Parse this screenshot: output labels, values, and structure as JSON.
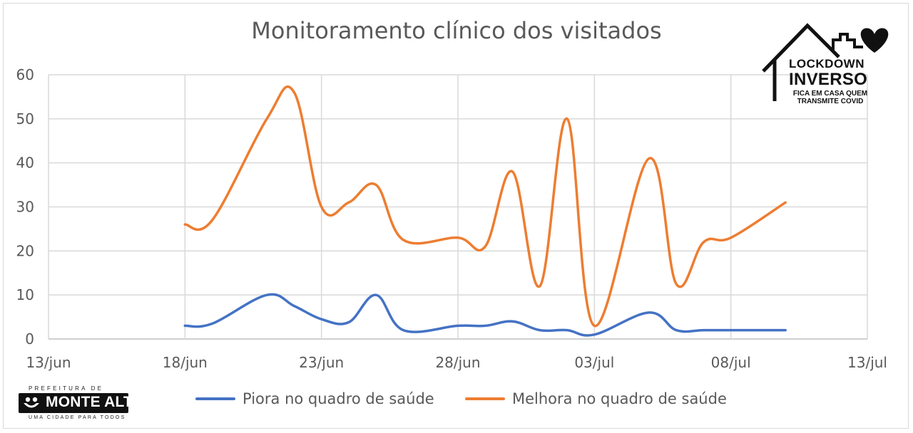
{
  "chart_data": {
    "type": "line",
    "title": "Monitoramento clínico dos visitados",
    "xlabel": "",
    "ylabel": "",
    "x_ticks": [
      "13/jun",
      "18/jun",
      "23/jun",
      "28/jun",
      "03/jul",
      "08/jul",
      "13/jul"
    ],
    "xlim": [
      "2020-06-13",
      "2020-07-13"
    ],
    "y_ticks": [
      "0",
      "10",
      "20",
      "30",
      "40",
      "50",
      "60"
    ],
    "ylim": [
      0,
      60
    ],
    "grid": true,
    "legend_position": "bottom",
    "series": [
      {
        "name": "Piora no quadro de saúde",
        "color": "#4472C4",
        "points": [
          [
            "2020-06-18",
            3
          ],
          [
            "2020-06-19",
            3.5
          ],
          [
            "2020-06-21",
            10
          ],
          [
            "2020-06-22",
            7.5
          ],
          [
            "2020-06-23",
            4.5
          ],
          [
            "2020-06-24",
            3.8
          ],
          [
            "2020-06-25",
            10
          ],
          [
            "2020-06-26",
            2
          ],
          [
            "2020-06-28",
            3
          ],
          [
            "2020-06-29",
            3
          ],
          [
            "2020-06-30",
            4
          ],
          [
            "2020-07-01",
            2
          ],
          [
            "2020-07-02",
            2
          ],
          [
            "2020-07-03",
            1
          ],
          [
            "2020-07-05",
            6
          ],
          [
            "2020-07-06",
            2
          ],
          [
            "2020-07-07",
            2
          ],
          [
            "2020-07-08",
            2
          ],
          [
            "2020-07-09",
            2
          ],
          [
            "2020-07-10",
            2
          ]
        ]
      },
      {
        "name": "Melhora no quadro de saúde",
        "color": "#ED7D31",
        "points": [
          [
            "2020-06-18",
            26
          ],
          [
            "2020-06-19",
            27
          ],
          [
            "2020-06-21",
            50
          ],
          [
            "2020-06-22",
            56
          ],
          [
            "2020-06-23",
            30
          ],
          [
            "2020-06-24",
            31
          ],
          [
            "2020-06-25",
            35
          ],
          [
            "2020-06-26",
            22.5
          ],
          [
            "2020-06-28",
            23
          ],
          [
            "2020-06-29",
            21
          ],
          [
            "2020-06-30",
            38
          ],
          [
            "2020-07-01",
            12
          ],
          [
            "2020-07-02",
            50
          ],
          [
            "2020-07-03",
            3
          ],
          [
            "2020-07-05",
            41
          ],
          [
            "2020-07-06",
            12.5
          ],
          [
            "2020-07-07",
            22
          ],
          [
            "2020-07-08",
            23
          ],
          [
            "2020-07-10",
            31
          ]
        ]
      }
    ]
  },
  "logos": {
    "lockdown_line1": "LOCKDOWN",
    "lockdown_line2": "INVERSO",
    "lockdown_tagline1": "FICA EM CASA QUEM",
    "lockdown_tagline2": "TRANSMITE COVID",
    "city_prefix": "PREFEITURA DE",
    "city_name": "MONTE ALTO",
    "city_slogan": "UMA CIDADE PARA TODOS",
    "icons": [
      "house-heart-icon",
      "smile-icon"
    ]
  }
}
